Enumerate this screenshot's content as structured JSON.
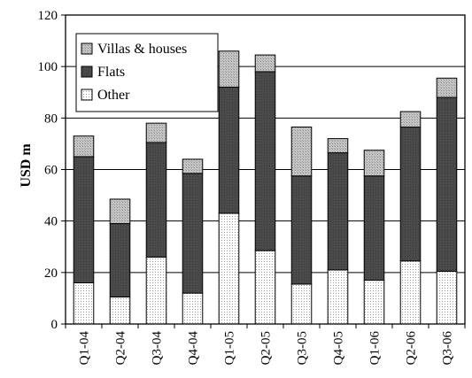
{
  "chart_data": {
    "type": "bar",
    "stacked": true,
    "title": "",
    "xlabel": "",
    "ylabel": "USD m",
    "ylim": [
      0,
      120
    ],
    "yticks": [
      0,
      20,
      40,
      60,
      80,
      100,
      120
    ],
    "grid": "horizontal",
    "legend_position": "top-left",
    "categories": [
      "Q1-04",
      "Q2-04",
      "Q3-04",
      "Q4-04",
      "Q1-05",
      "Q2-05",
      "Q3-05",
      "Q4-05",
      "Q1-06",
      "Q2-06",
      "Q3-06"
    ],
    "series": [
      {
        "name": "Other",
        "values": [
          16,
          10.5,
          26,
          12,
          43,
          28.5,
          15.5,
          21,
          17,
          24.5,
          20.5
        ]
      },
      {
        "name": "Flats",
        "values": [
          49,
          28.5,
          44.5,
          46.5,
          49,
          69.5,
          42,
          45.5,
          40.5,
          52,
          67.5
        ]
      },
      {
        "name": "Villas & houses",
        "values": [
          8,
          9.5,
          7.5,
          5.5,
          14,
          6.5,
          19,
          5.5,
          10,
          6,
          7.5
        ]
      }
    ],
    "legend_order": [
      "Villas & houses",
      "Flats",
      "Other"
    ]
  }
}
